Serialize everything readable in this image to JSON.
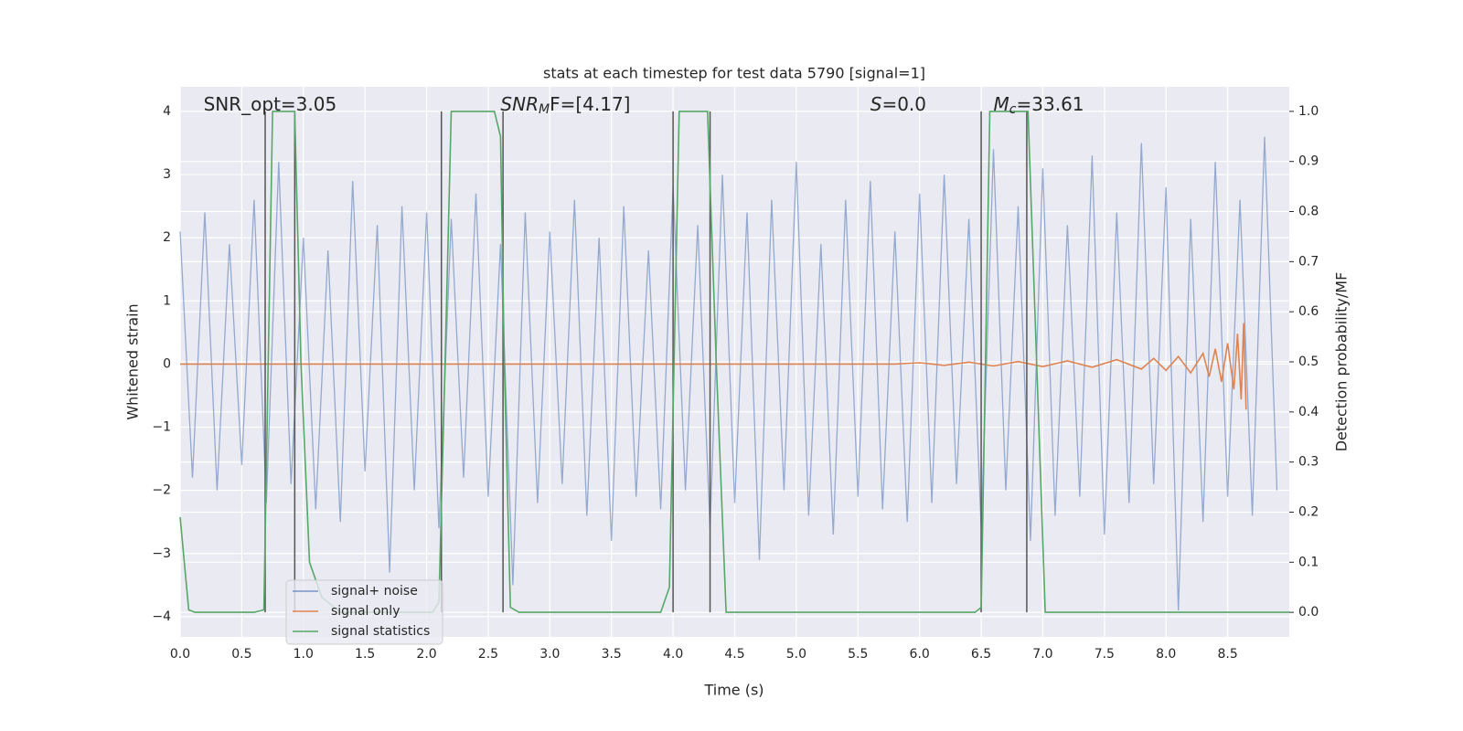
{
  "chart_data": {
    "type": "line",
    "title": "stats at each timestep for test data 5790 [signal=1]",
    "xlabel": "Time (s)",
    "ylabel": "Whitened strain",
    "y2label": "Detection probability/MF",
    "xlim": [
      0,
      9.0
    ],
    "ylim": [
      -4.32,
      4.39
    ],
    "y2lim": [
      -0.049,
      1.049
    ],
    "xticks": [
      {
        "value": 0,
        "label": "0.0"
      },
      {
        "value": 0.5,
        "label": "0.5"
      },
      {
        "value": 1,
        "label": "1.0"
      },
      {
        "value": 1.5,
        "label": "1.5"
      },
      {
        "value": 2,
        "label": "2.0"
      },
      {
        "value": 2.5,
        "label": "2.5"
      },
      {
        "value": 3,
        "label": "3.0"
      },
      {
        "value": 3.5,
        "label": "3.5"
      },
      {
        "value": 4,
        "label": "4.0"
      },
      {
        "value": 4.5,
        "label": "4.5"
      },
      {
        "value": 5,
        "label": "5.0"
      },
      {
        "value": 5.5,
        "label": "5.5"
      },
      {
        "value": 6,
        "label": "6.0"
      },
      {
        "value": 6.5,
        "label": "6.5"
      },
      {
        "value": 7,
        "label": "7.0"
      },
      {
        "value": 7.5,
        "label": "7.5"
      },
      {
        "value": 8,
        "label": "8.0"
      },
      {
        "value": 8.5,
        "label": "8.5"
      }
    ],
    "yticks": [
      {
        "value": -4,
        "label": "−4"
      },
      {
        "value": -3,
        "label": "−3"
      },
      {
        "value": -2,
        "label": "−2"
      },
      {
        "value": -1,
        "label": "−1"
      },
      0,
      1,
      2,
      3,
      4
    ],
    "y2ticks": [
      {
        "value": 0,
        "label": "0.0"
      },
      {
        "value": 0.1,
        "label": "0.1"
      },
      {
        "value": 0.2,
        "label": "0.2"
      },
      {
        "value": 0.3,
        "label": "0.3"
      },
      {
        "value": 0.4,
        "label": "0.4"
      },
      {
        "value": 0.5,
        "label": "0.5"
      },
      {
        "value": 0.6,
        "label": "0.6"
      },
      {
        "value": 0.7,
        "label": "0.7"
      },
      {
        "value": 0.8,
        "label": "0.8"
      },
      {
        "value": 0.9,
        "label": "0.9"
      },
      {
        "value": 1,
        "label": "1.0"
      }
    ],
    "grid": true,
    "legend": "lower left",
    "series": [
      {
        "name": "signal+ noise",
        "color": "#4c72b0",
        "axis": "y",
        "x": [
          0,
          0.1,
          0.2,
          0.3,
          0.4,
          0.5,
          0.6,
          0.7,
          0.8,
          0.9,
          1,
          1.1,
          1.2,
          1.3,
          1.4,
          1.5,
          1.6,
          1.7,
          1.8,
          1.9,
          2,
          2.1,
          2.2,
          2.3,
          2.4,
          2.5,
          2.6,
          2.7,
          2.8,
          2.9,
          3,
          3.1,
          3.2,
          3.3,
          3.4,
          3.5,
          3.6,
          3.7,
          3.8,
          3.9,
          4,
          4.1,
          4.2,
          4.3,
          4.4,
          4.5,
          4.6,
          4.7,
          4.8,
          4.9,
          5,
          5.1,
          5.2,
          5.3,
          5.4,
          5.5,
          5.6,
          5.7,
          5.8,
          5.9,
          6,
          6.1,
          6.2,
          6.3,
          6.4,
          6.5,
          6.6,
          6.7,
          6.8,
          6.9,
          7,
          7.1,
          7.2,
          7.3,
          7.4,
          7.5,
          7.6,
          7.7,
          7.8,
          7.9,
          8,
          8.1,
          8.2,
          8.3,
          8.4,
          8.5,
          8.6,
          8.7,
          8.8,
          8.9
        ],
        "values": [
          2.1,
          -1.8,
          2.4,
          -2.0,
          1.9,
          -1.6,
          2.6,
          -2.2,
          3.2,
          -1.9,
          2.0,
          -2.3,
          1.8,
          -2.5,
          2.9,
          -1.7,
          2.2,
          -3.3,
          2.5,
          -2.0,
          2.4,
          -2.6,
          2.3,
          -1.8,
          2.7,
          -2.1,
          1.9,
          -3.5,
          2.4,
          -2.2,
          2.1,
          -1.9,
          2.6,
          -2.4,
          2.0,
          -2.8,
          2.5,
          -2.1,
          1.8,
          -2.3,
          2.8,
          -2.0,
          2.2,
          -2.6,
          3.0,
          -2.2,
          2.4,
          -3.1,
          2.6,
          -2.0,
          3.2,
          -2.4,
          1.9,
          -2.7,
          2.6,
          -2.1,
          2.9,
          -2.3,
          2.1,
          -2.5,
          2.7,
          -2.2,
          3.0,
          -1.9,
          2.3,
          -2.6,
          3.4,
          -2.0,
          2.5,
          -2.8,
          3.1,
          -2.4,
          2.2,
          -2.1,
          3.3,
          -2.7,
          2.4,
          -2.2,
          3.5,
          -1.9,
          2.8,
          -3.9,
          2.3,
          -2.5,
          3.2,
          -2.1,
          2.6,
          -2.4,
          3.6,
          -2.0
        ]
      },
      {
        "name": "signal only",
        "color": "#dd8452",
        "axis": "y",
        "x": [
          0,
          5.8,
          6.0,
          6.2,
          6.4,
          6.6,
          6.8,
          7.0,
          7.2,
          7.4,
          7.6,
          7.8,
          7.9,
          8.0,
          8.1,
          8.2,
          8.3,
          8.35,
          8.4,
          8.45,
          8.5,
          8.55,
          8.58,
          8.61,
          8.63,
          8.65
        ],
        "values": [
          0,
          0,
          0.02,
          -0.02,
          0.03,
          -0.03,
          0.04,
          -0.04,
          0.05,
          -0.05,
          0.07,
          -0.08,
          0.09,
          -0.1,
          0.12,
          -0.14,
          0.17,
          -0.2,
          0.24,
          -0.28,
          0.33,
          -0.4,
          0.48,
          -0.56,
          0.65,
          -0.72
        ]
      },
      {
        "name": "signal statistics",
        "color": "#55a868",
        "axis": "y2",
        "x": [
          0,
          0.07,
          0.12,
          0.6,
          0.68,
          0.75,
          0.93,
          0.98,
          1.05,
          1.15,
          1.3,
          2.05,
          2.1,
          2.15,
          2.2,
          2.55,
          2.6,
          2.63,
          2.68,
          2.75,
          3.9,
          3.97,
          4.05,
          4.28,
          4.35,
          4.43,
          6.45,
          6.5,
          6.57,
          6.88,
          6.95,
          7.02,
          9.0
        ],
        "values": [
          0.19,
          0.005,
          0,
          0,
          0.005,
          1,
          1,
          0.5,
          0.1,
          0.03,
          0,
          0,
          0.02,
          0.5,
          1,
          1,
          0.95,
          0.5,
          0.01,
          0,
          0,
          0.05,
          1,
          1,
          0.5,
          0,
          0,
          0.01,
          1,
          1,
          0.5,
          0,
          0
        ]
      }
    ],
    "markers": {
      "color": "#555555",
      "x": [
        0.69,
        0.93,
        2.12,
        2.62,
        4.0,
        4.3,
        6.5,
        6.87
      ],
      "ymin": 0,
      "ymax": 1
    },
    "annotations": [
      {
        "parts": [
          "SNR_opt=3.05"
        ],
        "x": 0.19
      },
      {
        "parts": [
          "SNR",
          "M",
          "F=[4.17]"
        ],
        "x": 2.6
      },
      {
        "parts": [
          "S",
          "=0.0"
        ],
        "x": 5.6
      },
      {
        "parts": [
          "M",
          "c",
          "=33.61"
        ],
        "x": 6.6
      }
    ]
  }
}
